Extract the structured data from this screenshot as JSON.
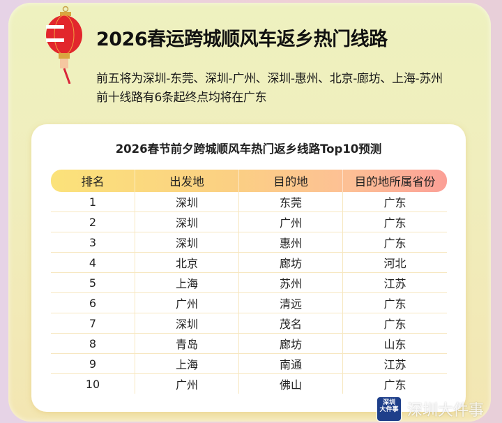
{
  "header": {
    "title": "2026春运跨城顺风车返乡热门线路",
    "subtitle_lines": [
      "前五将为深圳-东莞、深圳-广州、深圳-惠州、北京-廊坊、上海-苏州",
      "前十线路有6条起终点均将在广东"
    ]
  },
  "table": {
    "title": "2026春节前夕跨城顺风车热门返乡线路Top10预测",
    "columns": [
      "排名",
      "出发地",
      "目的地",
      "目的地所属省份"
    ],
    "rows": [
      [
        "1",
        "深圳",
        "东莞",
        "广东"
      ],
      [
        "2",
        "深圳",
        "广州",
        "广东"
      ],
      [
        "3",
        "深圳",
        "惠州",
        "广东"
      ],
      [
        "4",
        "北京",
        "廊坊",
        "河北"
      ],
      [
        "5",
        "上海",
        "苏州",
        "江苏"
      ],
      [
        "6",
        "广州",
        "清远",
        "广东"
      ],
      [
        "7",
        "深圳",
        "茂名",
        "广东"
      ],
      [
        "8",
        "青岛",
        "廊坊",
        "山东"
      ],
      [
        "9",
        "上海",
        "南通",
        "江苏"
      ],
      [
        "10",
        "广州",
        "佛山",
        "广东"
      ]
    ]
  },
  "watermark": {
    "logo_text": "深圳大件事",
    "text": "深圳大件事"
  },
  "colors": {
    "header_gradient_start": "#fbe27a",
    "header_gradient_end": "#fb9f96",
    "card_bg": "#eef1bf",
    "lantern": "#e2262c"
  },
  "icons": {
    "decoration": "lantern-icon"
  }
}
